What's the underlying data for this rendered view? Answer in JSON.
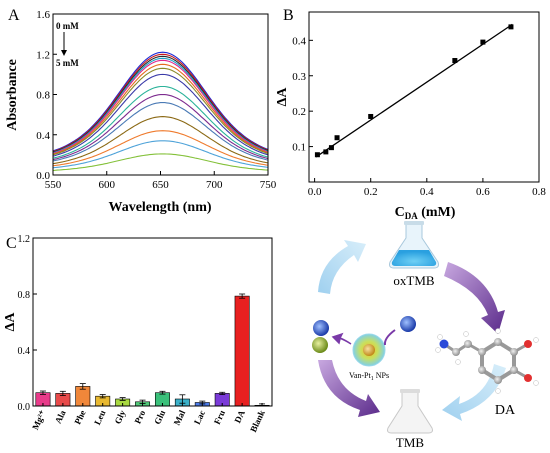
{
  "panels": {
    "a": {
      "letter": "A",
      "annotation_top": "0 mM",
      "annotation_bottom": "5 mM",
      "chart_data": {
        "type": "line",
        "xlabel": "Wavelength (nm)",
        "ylabel": "Absorbance",
        "xlim": [
          550,
          750
        ],
        "ylim": [
          0,
          1.6
        ],
        "xticks": [
          550,
          600,
          650,
          700,
          750
        ],
        "yticks": [
          0.0,
          0.4,
          0.8,
          1.2,
          1.6
        ],
        "grid": false,
        "peak_wavelength": 652,
        "series": [
          {
            "peak": 1.22,
            "base": 0.36,
            "color": "#1e2bd6"
          },
          {
            "peak": 1.2,
            "base": 0.35,
            "color": "#c8161d"
          },
          {
            "peak": 1.18,
            "base": 0.34,
            "color": "#2c2c2c"
          },
          {
            "peak": 1.16,
            "base": 0.33,
            "color": "#1aa3c8"
          },
          {
            "peak": 1.14,
            "base": 0.32,
            "color": "#e0278f"
          },
          {
            "peak": 1.1,
            "base": 0.31,
            "color": "#e56b1f"
          },
          {
            "peak": 1.06,
            "base": 0.3,
            "color": "#8a8a2a"
          },
          {
            "peak": 1.0,
            "base": 0.28,
            "color": "#3a3aa8"
          },
          {
            "peak": 0.88,
            "base": 0.25,
            "color": "#2bb39a"
          },
          {
            "peak": 0.8,
            "base": 0.23,
            "color": "#7d2b8f"
          },
          {
            "peak": 0.72,
            "base": 0.21,
            "color": "#4a7ab5"
          },
          {
            "peak": 0.58,
            "base": 0.17,
            "color": "#8b6914"
          },
          {
            "peak": 0.44,
            "base": 0.14,
            "color": "#ef7b2e"
          },
          {
            "peak": 0.34,
            "base": 0.11,
            "color": "#4fa3d9"
          },
          {
            "peak": 0.21,
            "base": 0.07,
            "color": "#84c13a"
          }
        ]
      }
    },
    "b": {
      "letter": "B",
      "chart_data": {
        "type": "scatter",
        "xlabel_main": "C",
        "xlabel_sub": "DA",
        "xlabel_unit": " (mM)",
        "ylabel": "ΔA",
        "xlim": [
          -0.02,
          0.8
        ],
        "ylim": [
          0.0,
          0.48
        ],
        "xticks": [
          0.0,
          0.2,
          0.4,
          0.6,
          0.8
        ],
        "yticks": [
          0.1,
          0.2,
          0.3,
          0.4
        ],
        "grid": false,
        "points": {
          "x": [
            0.01,
            0.04,
            0.06,
            0.08,
            0.2,
            0.5,
            0.6,
            0.7
          ],
          "y": [
            0.077,
            0.085,
            0.097,
            0.125,
            0.185,
            0.343,
            0.395,
            0.438
          ]
        },
        "fit": {
          "slope": 0.535,
          "intercept": 0.068
        }
      }
    },
    "c": {
      "letter": "C",
      "chart_data": {
        "type": "bar",
        "ylabel": "ΔA",
        "ylim": [
          0.0,
          1.2
        ],
        "yticks": [
          0.0,
          0.4,
          0.8,
          1.2
        ],
        "grid": false,
        "categories": [
          "Mg²⁺",
          "Ala",
          "Phe",
          "Leu",
          "Gly",
          "Pro",
          "Glu",
          "Mal",
          "Lac",
          "Fru",
          "DA",
          "Blank"
        ],
        "values": [
          0.095,
          0.09,
          0.14,
          0.07,
          0.05,
          0.03,
          0.095,
          0.05,
          0.025,
          0.09,
          0.785,
          0.005
        ],
        "errors": [
          0.012,
          0.015,
          0.02,
          0.012,
          0.01,
          0.012,
          0.01,
          0.03,
          0.01,
          0.008,
          0.015,
          0.01
        ],
        "colors": [
          "#e83b8a",
          "#e84a4a",
          "#f0873a",
          "#e8b830",
          "#a8d840",
          "#50c878",
          "#3ac07a",
          "#3ab0c8",
          "#4a7ae8",
          "#7a3ad8",
          "#e82020",
          "#404040"
        ]
      }
    },
    "d": {
      "labels": {
        "oxtmb": "oxTMB",
        "tmb": "TMB",
        "da": "DA",
        "nanozyme": "Van-Pt",
        "nanozyme_sub": "1",
        "nanozyme_tail": " NPs"
      }
    }
  }
}
